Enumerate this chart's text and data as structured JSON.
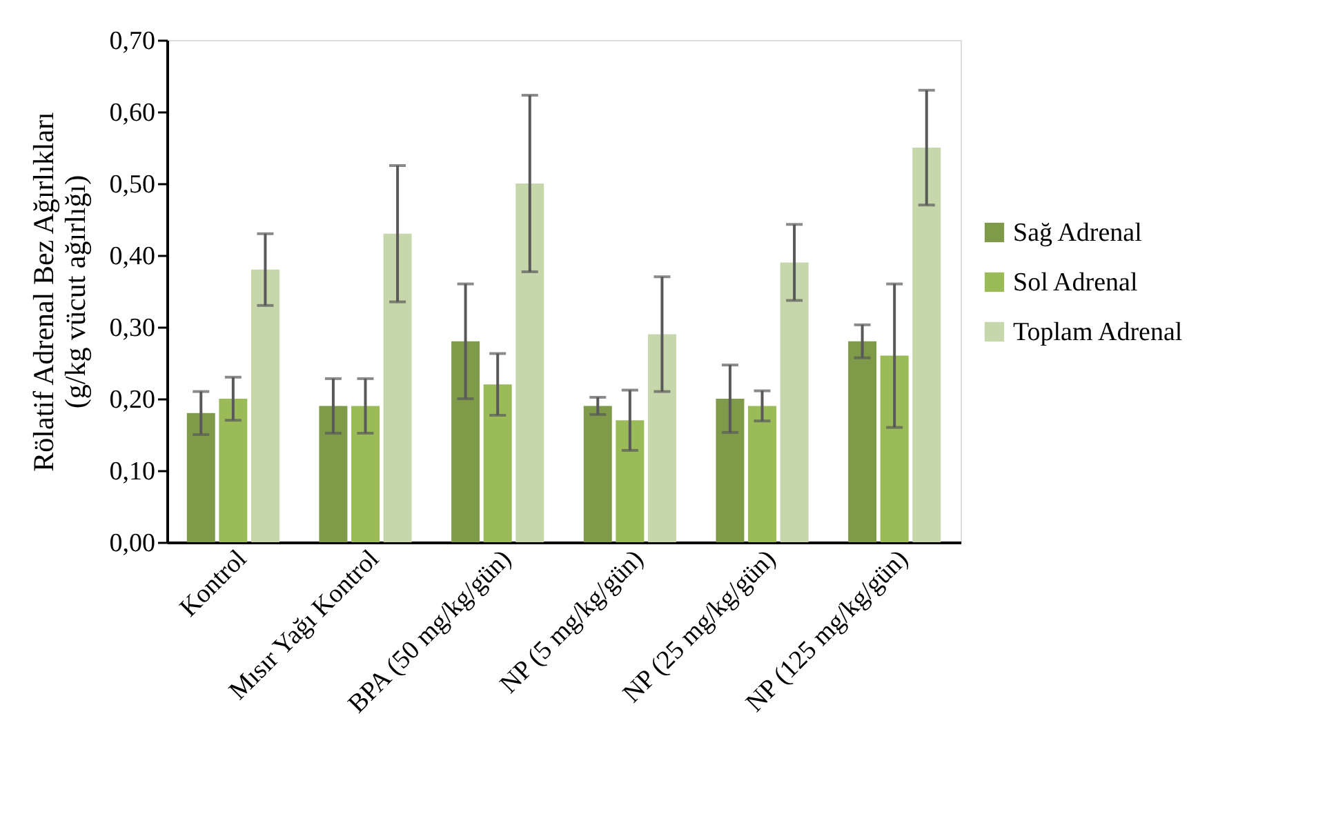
{
  "chart_data": {
    "type": "bar",
    "ylabel": [
      "Rölatif Adrenal Bez Ağırlıkları",
      "(g/kg vücut ağırlığı)"
    ],
    "categories": [
      "Kontrol",
      "Mısır Yağı Kontrol",
      "BPA (50 mg/kg/gün)",
      "NP (5 mg/kg/gün)",
      "NP (25 mg/kg/gün)",
      "NP (125 mg/kg/gün)"
    ],
    "series": [
      {
        "name": "Sağ Adrenal",
        "color": "#7f9a48",
        "values": [
          0.18,
          0.19,
          0.28,
          0.19,
          0.2,
          0.28
        ],
        "errors": [
          0.03,
          0.038,
          0.08,
          0.012,
          0.047,
          0.023
        ]
      },
      {
        "name": "Sol Adrenal",
        "color": "#9bbb59",
        "values": [
          0.2,
          0.19,
          0.22,
          0.17,
          0.19,
          0.26
        ],
        "errors": [
          0.03,
          0.038,
          0.043,
          0.042,
          0.021,
          0.1
        ]
      },
      {
        "name": "Toplam Adrenal",
        "color": "#c6d7ac",
        "values": [
          0.38,
          0.43,
          0.5,
          0.29,
          0.39,
          0.55
        ],
        "errors": [
          0.05,
          0.095,
          0.123,
          0.08,
          0.053,
          0.08
        ]
      }
    ],
    "ylim": [
      0,
      0.7
    ],
    "yticks": [
      {
        "value": 0,
        "label": "0,00"
      },
      {
        "value": 0.1,
        "label": "0,10"
      },
      {
        "value": 0.2,
        "label": "0,20"
      },
      {
        "value": 0.3,
        "label": "0,30"
      },
      {
        "value": 0.4,
        "label": "0,40"
      },
      {
        "value": 0.5,
        "label": "0,50"
      },
      {
        "value": 0.6,
        "label": "0,60"
      },
      {
        "value": 0.7,
        "label": "0,70"
      }
    ],
    "grid": false,
    "legend": "right"
  }
}
